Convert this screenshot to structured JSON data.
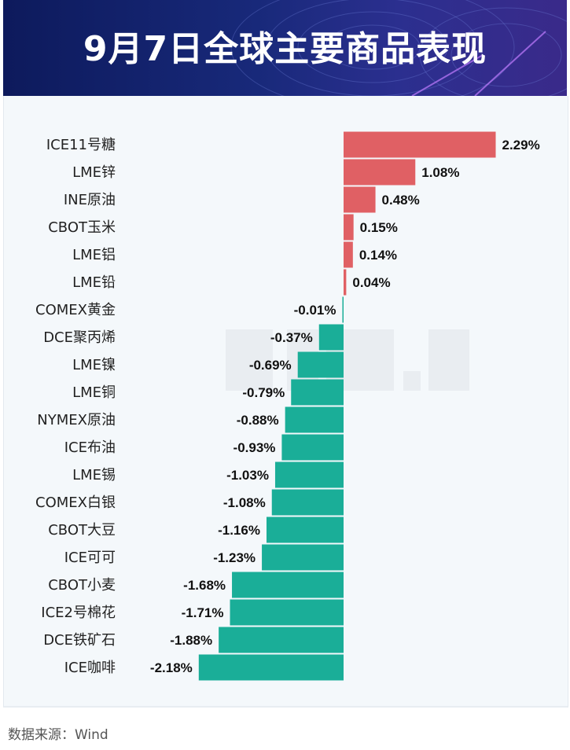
{
  "title": "9月7日全球主要商品表现",
  "source": "数据来源：Wind",
  "colors": {
    "positive": "#e06064",
    "negative": "#1aae98",
    "banner": "#18297a"
  },
  "chart_data": {
    "type": "bar",
    "orientation": "horizontal",
    "categories": [
      "ICE11号糖",
      "LME锌",
      "INE原油",
      "CBOT玉米",
      "LME铝",
      "LME铅",
      "COMEX黄金",
      "DCE聚丙烯",
      "LME镍",
      "LME铜",
      "NYMEX原油",
      "ICE布油",
      "LME锡",
      "COMEX白银",
      "CBOT大豆",
      "ICE可可",
      "CBOT小麦",
      "ICE2号棉花",
      "DCE铁矿石",
      "ICE咖啡"
    ],
    "values": [
      2.29,
      1.08,
      0.48,
      0.15,
      0.14,
      0.04,
      -0.01,
      -0.37,
      -0.69,
      -0.79,
      -0.88,
      -0.93,
      -1.03,
      -1.08,
      -1.16,
      -1.23,
      -1.68,
      -1.71,
      -1.88,
      -2.18
    ],
    "labels": [
      "2.29%",
      "1.08%",
      "0.48%",
      "0.15%",
      "0.14%",
      "0.04%",
      "-0.01%",
      "-0.37%",
      "-0.69%",
      "-0.79%",
      "-0.88%",
      "-0.93%",
      "-1.03%",
      "-1.08%",
      "-1.16%",
      "-1.23%",
      "-1.68%",
      "-1.71%",
      "-1.88%",
      "-2.18%"
    ],
    "unit": "%",
    "grid": false,
    "legend": "none"
  }
}
